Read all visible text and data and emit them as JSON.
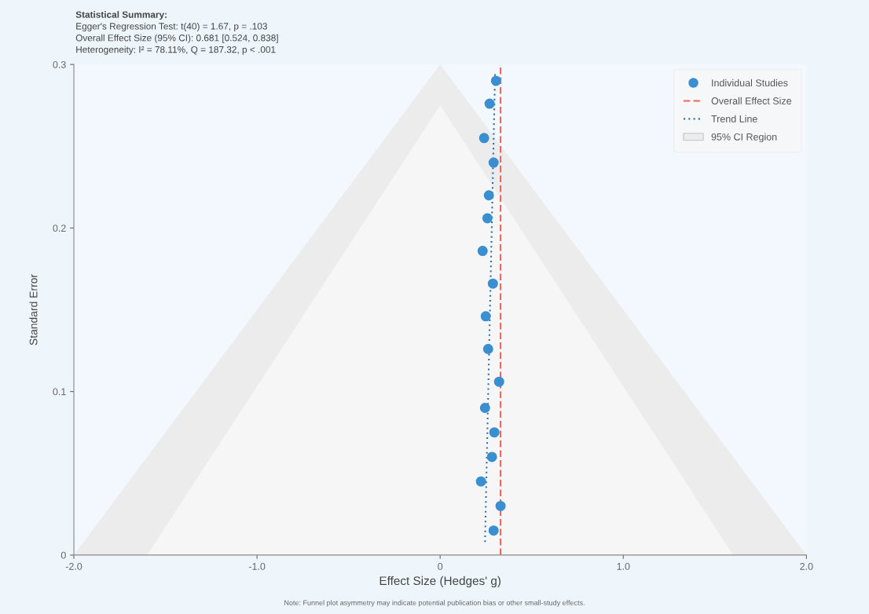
{
  "chart_data": {
    "type": "scatter",
    "xlabel": "Effect Size (Hedges' g)",
    "ylabel": "Standard Error",
    "xlim": [
      -2,
      2
    ],
    "ylim": [
      0,
      0.3
    ],
    "xticks": [
      {
        "value": -2,
        "label": "-2.0"
      },
      {
        "value": -1,
        "label": "-1.0"
      },
      0,
      {
        "value": 1,
        "label": "1.0"
      },
      {
        "value": 2,
        "label": "2.0"
      }
    ],
    "yticks": [
      0,
      0.1,
      0.2,
      0.3
    ],
    "grid": false,
    "legend": "top right",
    "series": [
      {
        "name": "95% CI Region",
        "type": "area",
        "color": "#ececec",
        "x": [
          -2,
          0,
          2
        ],
        "values": [
          0,
          0.3,
          0
        ]
      },
      {
        "type": "area",
        "color": "#f6f6f6",
        "x": [
          -1.6,
          0,
          1.6
        ],
        "values": [
          0,
          0.275,
          0
        ]
      },
      {
        "name": "Individual Studies",
        "color": "#3a8fd0",
        "marker": "circle",
        "x": [
          0.305,
          0.27,
          0.24,
          0.292,
          0.266,
          0.258,
          0.232,
          0.288,
          0.249,
          0.262,
          0.322,
          0.245,
          0.296,
          0.283,
          0.223,
          0.33,
          0.292
        ],
        "values": [
          0.29,
          0.276,
          0.255,
          0.24,
          0.22,
          0.206,
          0.186,
          0.166,
          0.146,
          0.126,
          0.106,
          0.09,
          0.075,
          0.06,
          0.045,
          0.03,
          0.015
        ]
      },
      {
        "name": "Overall Effect Size",
        "type": "line",
        "color": "#e8665c",
        "line_style": "dashed",
        "x": [
          0.33,
          0.33
        ],
        "values": [
          0,
          0.3
        ]
      },
      {
        "name": "Trend Line",
        "type": "line",
        "color": "#2a6fb0",
        "line_style": "dotted",
        "x": [
          0.245,
          0.3
        ],
        "values": [
          0.008,
          0.296
        ]
      }
    ],
    "annotations": [
      "Statistical Summary:",
      "Egger's Regression Test: t(40) = 1.67, p = .103",
      "Overall Effect Size (95% CI): 0.681 [0.524, 0.838]",
      "Heterogeneity: I² = 78.11%, Q = 187.32, p < .001",
      "Note: Funnel plot asymmetry may indicate potential publication bias or other small-study effects."
    ]
  }
}
